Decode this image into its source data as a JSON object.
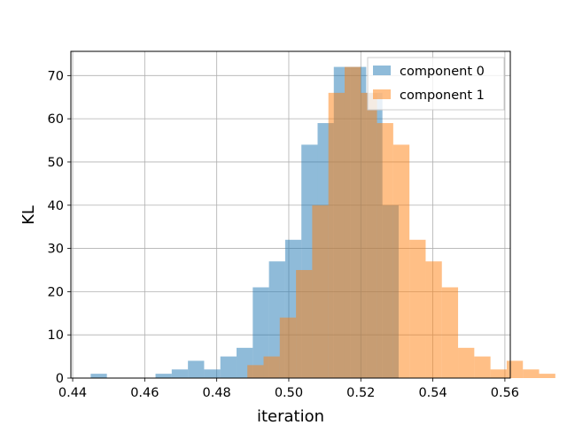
{
  "chart_data": {
    "type": "bar",
    "title": "",
    "xlabel": "iteration",
    "ylabel": "KL",
    "xlim": [
      0.4395,
      0.5615
    ],
    "ylim": [
      0,
      75.6
    ],
    "xticks": [
      0.44,
      0.46,
      0.48,
      0.5,
      0.52,
      0.54,
      0.56
    ],
    "xtick_labels": [
      "0.44",
      "0.46",
      "0.48",
      "0.50",
      "0.52",
      "0.54",
      "0.56"
    ],
    "yticks": [
      0,
      10,
      20,
      30,
      40,
      50,
      60,
      70
    ],
    "ytick_labels": [
      "0",
      "10",
      "20",
      "30",
      "40",
      "50",
      "60",
      "70"
    ],
    "grid": true,
    "legend": {
      "placement": "top-right"
    },
    "series": [
      {
        "name": "component 0",
        "color": "#1f77b4",
        "opacity": 0.5,
        "bins": [
          [
            0.445,
            0.4495,
            1
          ],
          [
            0.463,
            0.4675,
            1
          ],
          [
            0.4675,
            0.472,
            2
          ],
          [
            0.472,
            0.4765,
            4
          ],
          [
            0.4765,
            0.481,
            2
          ],
          [
            0.481,
            0.4855,
            5
          ],
          [
            0.4855,
            0.49,
            7
          ],
          [
            0.49,
            0.4945,
            21
          ],
          [
            0.4945,
            0.499,
            27
          ],
          [
            0.499,
            0.5035,
            32
          ],
          [
            0.5035,
            0.508,
            54
          ],
          [
            0.508,
            0.5125,
            59
          ],
          [
            0.5125,
            0.517,
            72
          ],
          [
            0.517,
            0.5215,
            72
          ],
          [
            0.5215,
            0.526,
            66
          ],
          [
            0.526,
            0.5305,
            40
          ]
        ]
      },
      {
        "name": "component 1",
        "color": "#ff7f0e",
        "opacity": 0.5,
        "bins": [
          [
            0.4885,
            0.493,
            3
          ],
          [
            0.493,
            0.4975,
            5
          ],
          [
            0.4975,
            0.502,
            14
          ],
          [
            0.502,
            0.5065,
            25
          ],
          [
            0.5065,
            0.511,
            40
          ],
          [
            0.511,
            0.5155,
            66
          ],
          [
            0.5155,
            0.52,
            72
          ],
          [
            0.52,
            0.5245,
            66
          ],
          [
            0.5245,
            0.529,
            59
          ],
          [
            0.529,
            0.5335,
            54
          ],
          [
            0.5335,
            0.538,
            32
          ],
          [
            0.538,
            0.5425,
            27
          ],
          [
            0.5425,
            0.547,
            21
          ],
          [
            0.547,
            0.5515,
            7
          ],
          [
            0.5515,
            0.556,
            5
          ],
          [
            0.556,
            0.5605,
            2
          ],
          [
            0.5605,
            0.565,
            4
          ],
          [
            0.565,
            0.5695,
            2
          ],
          [
            0.5695,
            0.574,
            1
          ]
        ]
      }
    ]
  }
}
